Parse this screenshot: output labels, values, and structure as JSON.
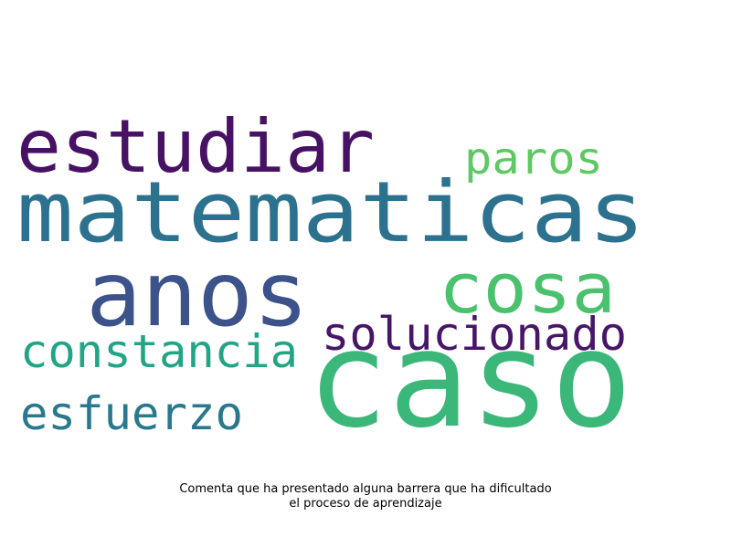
{
  "words": [
    {
      "text": "matematicas",
      "color": "#2c728e"
    },
    {
      "text": "caso",
      "color": "#3bb77a"
    },
    {
      "text": "anos",
      "color": "#3b528b"
    },
    {
      "text": "estudiar",
      "color": "#471164"
    },
    {
      "text": "cosa",
      "color": "#4ac16d"
    },
    {
      "text": "solucionado",
      "color": "#481668"
    },
    {
      "text": "constancia",
      "color": "#21a585"
    },
    {
      "text": "esfuerzo",
      "color": "#2a788e"
    },
    {
      "text": "paros",
      "color": "#5ec962"
    }
  ],
  "caption": {
    "line1": "Comenta que ha presentado alguna barrera que ha dificultado",
    "line2": "el proceso de aprendizaje"
  }
}
